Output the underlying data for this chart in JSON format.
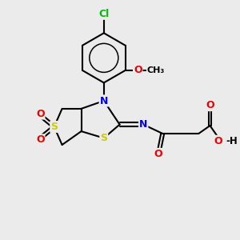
{
  "background_color": "#ebebeb",
  "bond_color": "#000000",
  "atom_colors": {
    "C": "#000000",
    "N": "#0000ee",
    "O": "#ee0000",
    "S": "#cccc00",
    "Cl": "#00bb00",
    "H": "#000000"
  }
}
